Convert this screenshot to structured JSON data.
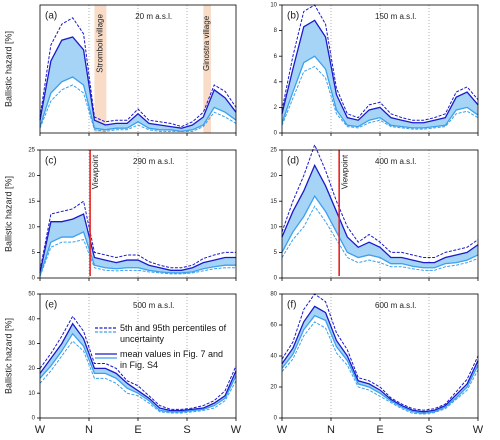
{
  "chart_data": [
    {
      "type": "line",
      "panel": "(a)",
      "title": "20 m a.s.l.",
      "ylabel": "Ballistic hazard [%]",
      "xlim": [
        0,
        360
      ],
      "ylim": [
        0,
        8
      ],
      "xticks": [
        0,
        90,
        180,
        270,
        360
      ],
      "band_fill": "#a6d4f6",
      "x": [
        0,
        20,
        40,
        60,
        80,
        100,
        120,
        140,
        160,
        180,
        200,
        220,
        240,
        260,
        280,
        300,
        320,
        340,
        360
      ],
      "shaded_regions": [
        {
          "label": "Stromboli village",
          "xlim": [
            100,
            122
          ],
          "color": "#f8dcc8"
        },
        {
          "label": "Ginostra village",
          "xlim": [
            300,
            314
          ],
          "color": "#f8dcc8"
        }
      ],
      "series": [
        {
          "color": "#1a1acc",
          "dash": true,
          "values": [
            1.0,
            5.5,
            6.8,
            7.2,
            6.2,
            1.0,
            0.7,
            0.8,
            0.8,
            1.5,
            0.8,
            0.7,
            0.6,
            0.4,
            0.7,
            1.3,
            3.0,
            2.6,
            1.6
          ]
        },
        {
          "color": "#1a1acc",
          "dash": false,
          "values": [
            0.8,
            4.5,
            5.8,
            6.0,
            5.2,
            0.8,
            0.5,
            0.6,
            0.6,
            1.2,
            0.6,
            0.5,
            0.4,
            0.3,
            0.5,
            1.0,
            2.7,
            2.2,
            1.3
          ]
        },
        {
          "color": "#3aa0ee",
          "dash": false,
          "values": [
            0.4,
            2.5,
            3.2,
            3.5,
            3.0,
            0.3,
            0.2,
            0.3,
            0.3,
            0.7,
            0.3,
            0.2,
            0.2,
            0.1,
            0.2,
            0.5,
            1.6,
            1.3,
            0.8
          ]
        },
        {
          "color": "#3aa0ee",
          "dash": true,
          "values": [
            0.3,
            2.0,
            2.7,
            3.0,
            2.5,
            0.2,
            0.1,
            0.2,
            0.2,
            0.5,
            0.2,
            0.1,
            0.1,
            0.1,
            0.1,
            0.4,
            1.3,
            1.0,
            0.6
          ]
        }
      ]
    },
    {
      "type": "line",
      "panel": "(b)",
      "title": "150 m a.s.l.",
      "xlim": [
        0,
        360
      ],
      "ylim": [
        0,
        10
      ],
      "yticks": [
        0,
        2,
        4,
        6,
        8,
        10
      ],
      "xticks": [
        0,
        90,
        180,
        270,
        360
      ],
      "band_fill": "#a6d4f6",
      "x": [
        0,
        20,
        40,
        60,
        80,
        100,
        120,
        140,
        160,
        180,
        200,
        220,
        240,
        260,
        280,
        300,
        320,
        340,
        360
      ],
      "series": [
        {
          "color": "#1a1acc",
          "dash": true,
          "values": [
            1.8,
            6.0,
            9.5,
            10.0,
            8.5,
            3.5,
            1.5,
            1.2,
            2.2,
            2.4,
            1.5,
            1.2,
            1.0,
            1.0,
            1.2,
            1.5,
            3.2,
            3.6,
            2.6
          ]
        },
        {
          "color": "#1a1acc",
          "dash": false,
          "values": [
            1.5,
            5.0,
            8.3,
            8.8,
            7.5,
            3.0,
            1.2,
            1.0,
            1.8,
            2.0,
            1.2,
            1.0,
            0.8,
            0.8,
            1.0,
            1.2,
            2.8,
            3.2,
            2.2
          ]
        },
        {
          "color": "#3aa0ee",
          "dash": false,
          "values": [
            0.8,
            3.2,
            5.5,
            6.0,
            5.0,
            1.8,
            0.6,
            0.5,
            1.0,
            1.2,
            0.6,
            0.5,
            0.4,
            0.4,
            0.5,
            0.6,
            1.8,
            2.0,
            1.4
          ]
        },
        {
          "color": "#3aa0ee",
          "dash": true,
          "values": [
            0.6,
            2.7,
            4.8,
            5.2,
            4.3,
            1.5,
            0.5,
            0.4,
            0.8,
            1.0,
            0.5,
            0.4,
            0.3,
            0.3,
            0.4,
            0.5,
            1.5,
            1.7,
            1.2
          ]
        }
      ]
    },
    {
      "type": "line",
      "panel": "(c)",
      "title": "290 m a.s.l.",
      "ylabel": "Ballistic hazard [%]",
      "xlim": [
        0,
        360
      ],
      "ylim": [
        0,
        25
      ],
      "yticks": [
        0,
        5,
        10,
        15,
        20,
        25
      ],
      "xticks": [
        0,
        90,
        180,
        270,
        360
      ],
      "band_fill": "#a6d4f6",
      "viewpoint": {
        "label": "Viewpoint",
        "x": 92,
        "color": "#e8231f"
      },
      "x": [
        0,
        20,
        40,
        60,
        80,
        100,
        120,
        140,
        160,
        180,
        200,
        220,
        240,
        260,
        280,
        300,
        320,
        340,
        360
      ],
      "series": [
        {
          "color": "#1a1acc",
          "dash": true,
          "values": [
            1.5,
            12.5,
            13,
            13.5,
            15,
            5,
            4.5,
            4,
            4.5,
            4.5,
            3.2,
            2.5,
            2,
            2,
            2.5,
            3.8,
            4.5,
            5,
            5
          ]
        },
        {
          "color": "#1a1acc",
          "dash": false,
          "values": [
            1,
            11,
            11,
            11.5,
            12.5,
            4,
            3.5,
            3,
            3.5,
            3.5,
            2.5,
            2,
            1.5,
            1.5,
            2,
            3,
            3.5,
            4,
            4
          ]
        },
        {
          "color": "#3aa0ee",
          "dash": false,
          "values": [
            0.5,
            7,
            8,
            8,
            9,
            2.5,
            2,
            1.8,
            2,
            2,
            1.5,
            1.2,
            1,
            1,
            1.2,
            1.8,
            2.2,
            2.5,
            2.5
          ]
        },
        {
          "color": "#3aa0ee",
          "dash": true,
          "values": [
            0.3,
            6,
            7,
            7,
            7.5,
            2,
            1.5,
            1.4,
            1.5,
            1.5,
            1.2,
            1,
            0.8,
            0.8,
            1,
            1.4,
            1.8,
            2,
            2
          ]
        }
      ]
    },
    {
      "type": "line",
      "panel": "(d)",
      "title": "400 m a.s.l.",
      "xlim": [
        0,
        360
      ],
      "ylim": [
        0,
        25
      ],
      "yticks": [
        0,
        5,
        10,
        15,
        20,
        25
      ],
      "xticks": [
        0,
        90,
        180,
        270,
        360
      ],
      "band_fill": "#a6d4f6",
      "viewpoint": {
        "label": "Viewpoint",
        "x": 105,
        "color": "#e8231f"
      },
      "x": [
        0,
        20,
        40,
        60,
        80,
        100,
        120,
        140,
        160,
        180,
        200,
        220,
        240,
        260,
        280,
        300,
        320,
        340,
        360
      ],
      "series": [
        {
          "color": "#1a1acc",
          "dash": true,
          "values": [
            9,
            15,
            20,
            26,
            21,
            15,
            10,
            7,
            8.5,
            7,
            5,
            5,
            4.5,
            4,
            4,
            5,
            5.5,
            6,
            7.5
          ]
        },
        {
          "color": "#1a1acc",
          "dash": false,
          "values": [
            8,
            13,
            17,
            22,
            18,
            13,
            8,
            6,
            7,
            6,
            4,
            4,
            3.5,
            3,
            3,
            4,
            4.5,
            5,
            6.5
          ]
        },
        {
          "color": "#3aa0ee",
          "dash": false,
          "values": [
            5,
            9,
            12,
            16,
            13,
            9,
            5,
            4,
            4.5,
            4,
            2.8,
            2.8,
            2.3,
            2,
            2,
            2.8,
            3,
            3.5,
            4.5
          ]
        },
        {
          "color": "#3aa0ee",
          "dash": true,
          "values": [
            4,
            7.5,
            10,
            14,
            11,
            7.5,
            4,
            3,
            3.5,
            3,
            2.2,
            2.2,
            1.8,
            1.5,
            1.5,
            2.2,
            2.5,
            3,
            3.8
          ]
        }
      ]
    },
    {
      "type": "line",
      "panel": "(e)",
      "title": "500 m a.s.l.",
      "ylabel": "Ballistic hazard [%]",
      "xlim": [
        0,
        360
      ],
      "ylim": [
        0,
        50
      ],
      "yticks": [
        0,
        10,
        20,
        30,
        40,
        50
      ],
      "xticks": [
        {
          "value": 0,
          "label": "W"
        },
        {
          "value": 90,
          "label": "N"
        },
        {
          "value": 180,
          "label": "E"
        },
        {
          "value": 270,
          "label": "S"
        },
        {
          "value": 360,
          "label": "W"
        }
      ],
      "band_fill": "#a6d4f6",
      "legend": [
        {
          "label": "5th and 95th percentiles of uncertainty",
          "dash": true
        },
        {
          "label": "mean values in Fig. 7 and in Fig. S4",
          "dash": false
        }
      ],
      "x": [
        0,
        20,
        40,
        60,
        80,
        100,
        120,
        140,
        160,
        180,
        200,
        220,
        240,
        260,
        280,
        300,
        320,
        340,
        360
      ],
      "series": [
        {
          "color": "#1a1acc",
          "dash": true,
          "values": [
            20,
            26,
            33,
            41,
            35,
            22,
            22,
            20,
            15,
            13,
            9,
            5,
            3.5,
            3.5,
            4,
            5,
            7,
            11,
            21
          ]
        },
        {
          "color": "#1a1acc",
          "dash": false,
          "values": [
            18,
            24,
            30,
            38,
            32,
            20,
            20,
            18,
            14,
            11,
            8,
            4,
            3,
            3,
            3.5,
            4,
            6,
            9,
            19
          ]
        },
        {
          "color": "#3aa0ee",
          "dash": false,
          "values": [
            16,
            21,
            27,
            34,
            29,
            18,
            18,
            16,
            12,
            10,
            7,
            3,
            2.5,
            2.5,
            3,
            3.5,
            5,
            8,
            17
          ]
        },
        {
          "color": "#3aa0ee",
          "dash": true,
          "values": [
            14,
            19,
            25,
            31,
            27,
            16,
            16,
            14,
            10,
            9,
            6,
            2.5,
            2,
            2,
            2.5,
            3,
            4,
            7,
            15
          ]
        }
      ]
    },
    {
      "type": "line",
      "panel": "(f)",
      "title": "600 m a.s.l.",
      "xlim": [
        0,
        360
      ],
      "ylim": [
        0,
        80
      ],
      "yticks": [
        0,
        20,
        40,
        60,
        80
      ],
      "xticks": [
        {
          "value": 0,
          "label": "W"
        },
        {
          "value": 90,
          "label": "N"
        },
        {
          "value": 180,
          "label": "E"
        },
        {
          "value": 270,
          "label": "S"
        },
        {
          "value": 360,
          "label": "W"
        }
      ],
      "band_fill": "#a6d4f6",
      "x": [
        0,
        20,
        40,
        60,
        80,
        100,
        120,
        140,
        160,
        180,
        200,
        220,
        240,
        260,
        280,
        300,
        320,
        340,
        360
      ],
      "series": [
        {
          "color": "#1a1acc",
          "dash": true,
          "values": [
            38,
            49,
            70,
            80,
            75,
            55,
            44,
            26,
            24,
            20,
            13,
            9,
            6,
            5,
            6,
            9,
            17,
            25,
            40
          ]
        },
        {
          "color": "#1a1acc",
          "dash": false,
          "values": [
            35,
            45,
            62,
            72,
            68,
            50,
            40,
            24,
            22,
            18,
            12,
            8,
            5,
            4,
            5,
            8,
            15,
            22,
            37
          ]
        },
        {
          "color": "#3aa0ee",
          "dash": false,
          "values": [
            32,
            41,
            57,
            66,
            63,
            46,
            37,
            22,
            20,
            16,
            11,
            7,
            4,
            3,
            4,
            7,
            13,
            20,
            34
          ]
        },
        {
          "color": "#3aa0ee",
          "dash": true,
          "values": [
            30,
            38,
            53,
            62,
            58,
            42,
            34,
            20,
            18,
            14,
            10,
            6,
            3,
            2.5,
            3.5,
            6,
            12,
            18,
            31
          ]
        }
      ]
    }
  ]
}
